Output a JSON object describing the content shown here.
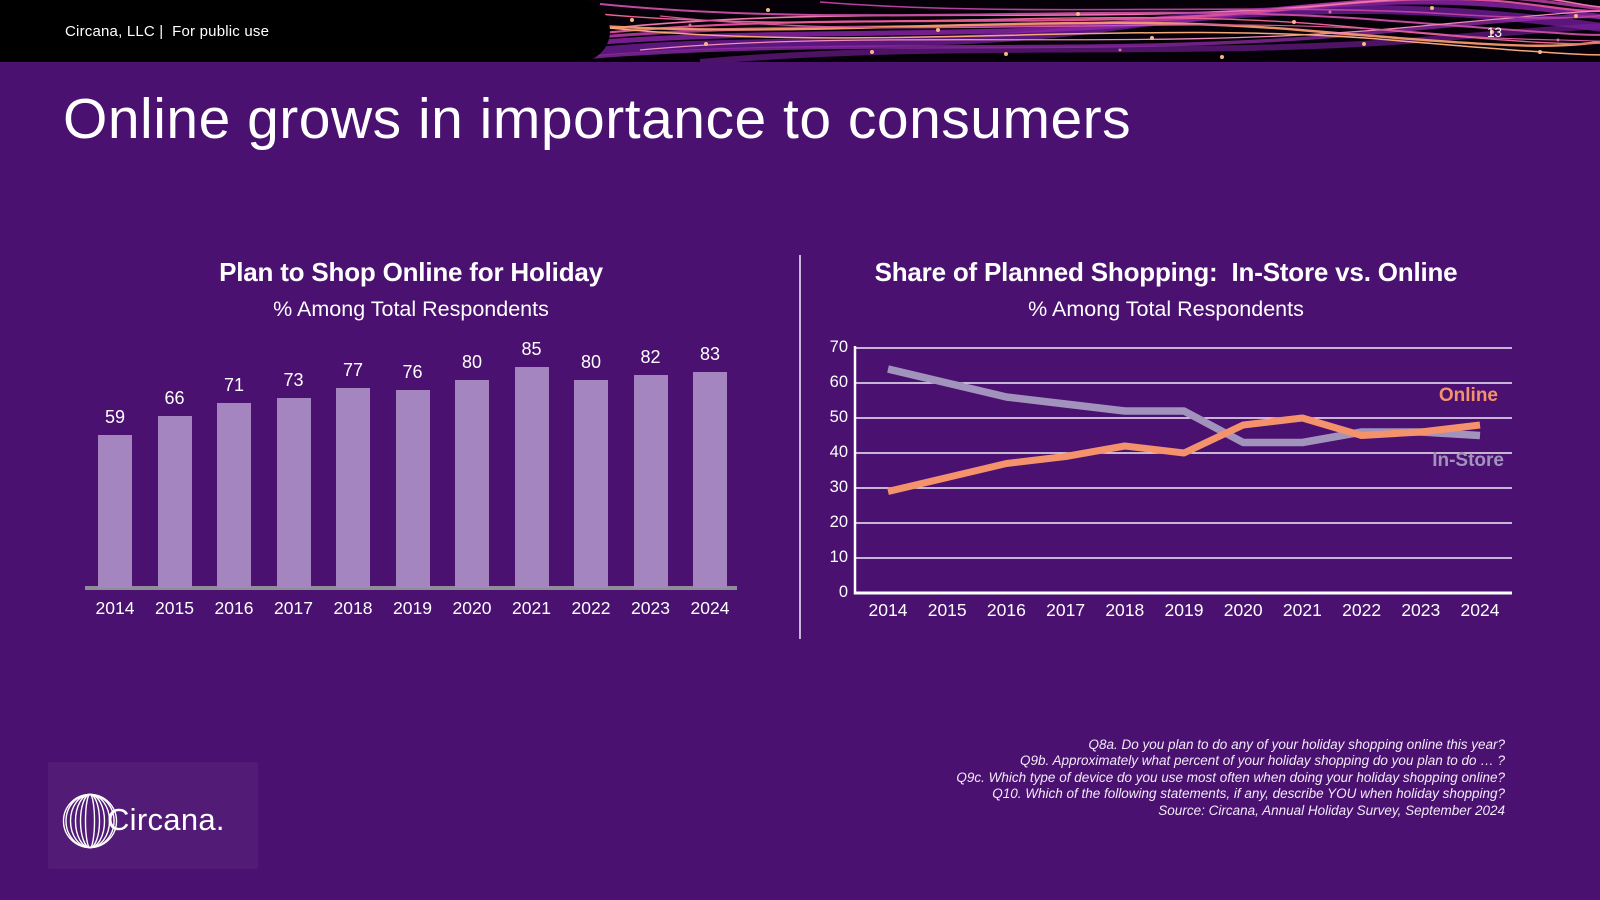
{
  "header": {
    "brand_line": "Circana, LLC |  For public use",
    "page_number": "13"
  },
  "slide": {
    "title": "Online grows in importance to consumers",
    "background_color": "#4a1170"
  },
  "chart_data": [
    {
      "type": "bar",
      "title": "Plan to Shop Online for Holiday",
      "subtitle": "% Among Total Respondents",
      "categories": [
        "2014",
        "2015",
        "2016",
        "2017",
        "2018",
        "2019",
        "2020",
        "2021",
        "2022",
        "2023",
        "2024"
      ],
      "values": [
        59,
        66,
        71,
        73,
        77,
        76,
        80,
        85,
        80,
        82,
        83
      ],
      "bar_color": "#a485c0",
      "value_labels_shown": true,
      "ylim": [
        0,
        95
      ],
      "grid": false
    },
    {
      "type": "line",
      "title": "Share of Planned Shopping:  In-Store vs. Online",
      "subtitle": "% Among Total Respondents",
      "categories": [
        "2014",
        "2015",
        "2016",
        "2017",
        "2018",
        "2019",
        "2020",
        "2021",
        "2022",
        "2023",
        "2024"
      ],
      "y_ticks": [
        0,
        10,
        20,
        30,
        40,
        50,
        60,
        70
      ],
      "ylim": [
        0,
        70
      ],
      "grid": true,
      "legend_position": "inline-right",
      "series": [
        {
          "name": "Online",
          "color": "#f4926c",
          "values": [
            29,
            33,
            37,
            39,
            42,
            40,
            48,
            50,
            45,
            46,
            48
          ]
        },
        {
          "name": "In-Store",
          "color": "#a293bd",
          "values": [
            64,
            60,
            56,
            54,
            52,
            52,
            43,
            43,
            46,
            46,
            45
          ]
        }
      ]
    }
  ],
  "footnotes": [
    "Q8a. Do you plan to do any of your holiday shopping online this year?",
    "Q9b. Approximately what percent of your holiday shopping do you plan to do … ?",
    "Q9c. Which type of device do you use most often when doing your holiday shopping online?",
    "Q10. Which of the following statements, if any, describe YOU when holiday shopping?",
    "Source: Circana, Annual Holiday Survey, September 2024"
  ],
  "logo": {
    "text": "Circana."
  }
}
